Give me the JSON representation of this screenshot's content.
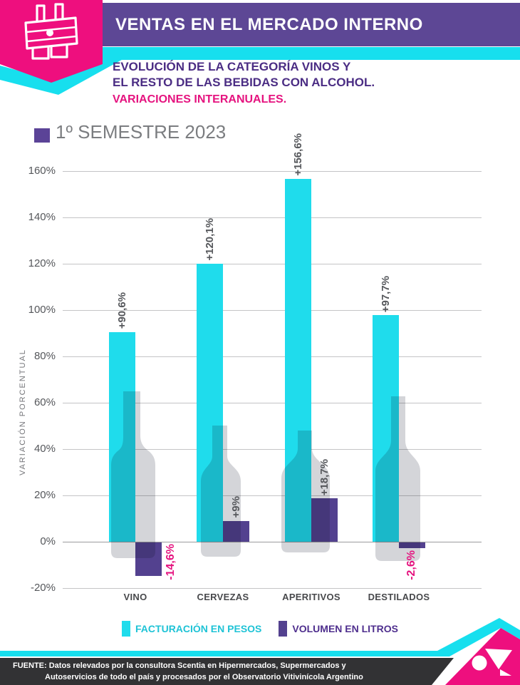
{
  "header": {
    "title": "VENTAS EN EL MERCADO INTERNO",
    "subtitle_line1": "EVOLUCIÓN DE LA CATEGORÍA VINOS Y",
    "subtitle_line2": "EL RESTO DE LAS BEBIDAS CON ALCOHOL.",
    "note": "VARIACIONES INTERANUALES.",
    "logo": "wine-bottles-banner-logo"
  },
  "period": {
    "label": "1º SEMESTRE 2023"
  },
  "chart_data": {
    "type": "bar",
    "title": "1º SEMESTRE 2023",
    "categories": [
      "VINO",
      "CERVEZAS",
      "APERITIVOS",
      "DESTILADOS"
    ],
    "series": [
      {
        "name": "FACTURACIÓN EN PESOS",
        "color": "#1fdcec",
        "values": [
          90.6,
          120.1,
          156.6,
          97.7
        ],
        "labels": [
          "+90,6%",
          "+120,1%",
          "+156,6%",
          "+97,7%"
        ]
      },
      {
        "name": "VOLUMEN EN LITROS",
        "color": "#53418f",
        "values": [
          -14.6,
          9,
          18.7,
          -2.6
        ],
        "labels": [
          "-14,6%",
          "+9%",
          "+18,7%",
          "-2,6%"
        ]
      }
    ],
    "ylabel": "VARIACIÓN  PORCENTUAL",
    "xlabel": "",
    "ylim": [
      -20,
      160
    ],
    "yticks": [
      "160%",
      "140%",
      "120%",
      "100%",
      "80%",
      "60%",
      "40%",
      "20%",
      "0%",
      "-20%"
    ],
    "grid": true,
    "legend_position": "bottom",
    "positive_label_color": "#55575b",
    "negative_label_color": "#e5137f",
    "background_decoration": "gray bottle silhouettes behind each category"
  },
  "legend": {
    "items": [
      {
        "label": "FACTURACIÓN EN PESOS",
        "color": "#1fdcec"
      },
      {
        "label": "VOLUMEN EN LITROS",
        "color": "#53418f"
      }
    ]
  },
  "footer": {
    "source_line1": "FUENTE: Datos relevados por la consultora Scentia en Hipermercados, Supermercados y",
    "source_line2": "Autoservicios de todo el país y procesados por el Observatorio Vitivinícola Argentino",
    "logo": "martini-glass-logo"
  },
  "colors": {
    "header_purple": "#5d4795",
    "magenta": "#ee0f7e",
    "cyan": "#17dfee",
    "bar_cyan": "#1fdcec",
    "bar_purple": "#53418f",
    "subtitle_purple": "#4b2d84",
    "footer_dark": "#323234"
  }
}
